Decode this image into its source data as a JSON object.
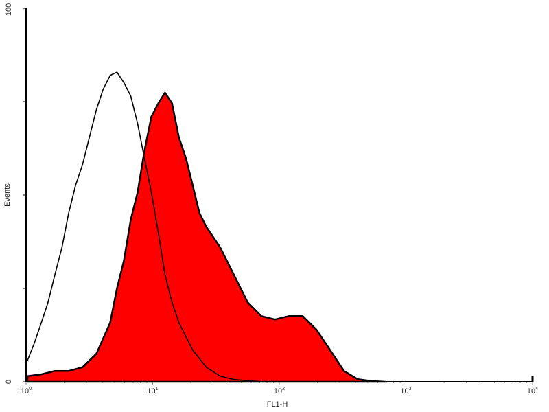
{
  "chart_data": {
    "type": "area",
    "title": "",
    "xlabel": "FL1-H",
    "ylabel": "Events",
    "xscale": "log",
    "xlim": [
      1,
      10000
    ],
    "ylim": [
      0,
      100
    ],
    "x_tick_labels": [
      {
        "base": "10",
        "exp": "0"
      },
      {
        "base": "10",
        "exp": "1"
      },
      {
        "base": "10",
        "exp": "2"
      },
      {
        "base": "10",
        "exp": "3"
      },
      {
        "base": "10",
        "exp": "4"
      }
    ],
    "y_tick_labels": [
      "0",
      "100"
    ],
    "y_ticks": [
      0,
      25,
      50,
      75,
      100
    ],
    "grid": false,
    "colors": {
      "filled": "#ff0000",
      "outline": "#000000"
    },
    "series": [
      {
        "style": "open-outline",
        "x": [
          1.025,
          1.16,
          1.32,
          1.49,
          1.69,
          1.92,
          2.17,
          2.46,
          2.79,
          3.16,
          3.59,
          4.06,
          4.61,
          5.22,
          5.92,
          6.71,
          7.6,
          8.6,
          9.77,
          11.1,
          12.5,
          14.2,
          16.1,
          20.7,
          26.5,
          34.1,
          43.7,
          72
        ],
        "y": [
          5.7,
          10.3,
          15.8,
          21.3,
          28.7,
          36,
          45.2,
          52.6,
          58.1,
          65.4,
          72.8,
          78.3,
          82,
          82.9,
          80.1,
          76.5,
          69.1,
          59.9,
          50.7,
          39.7,
          28.7,
          21.3,
          15.8,
          8.5,
          3.9,
          1.5,
          0.6,
          0
        ]
      },
      {
        "style": "filled",
        "x": [
          1.025,
          1.32,
          1.69,
          2.17,
          2.79,
          3.59,
          4.61,
          5.22,
          5.92,
          6.71,
          7.6,
          8.6,
          9.77,
          11.1,
          12.5,
          14.2,
          16.1,
          18.3,
          20.7,
          23.4,
          26.5,
          34.1,
          43.7,
          56.2,
          72,
          92.5,
          119,
          153,
          196,
          252,
          324,
          416,
          534,
          686
        ],
        "y": [
          1.5,
          2,
          2.9,
          2.9,
          3.9,
          7.5,
          15.8,
          25,
          32.4,
          43.4,
          50.7,
          61.8,
          71,
          74.6,
          77.4,
          74.6,
          65.4,
          59.9,
          52.6,
          45.2,
          41.5,
          36,
          28.7,
          21.3,
          17.6,
          16.7,
          17.6,
          17.6,
          14,
          8.5,
          2.9,
          0.7,
          0.2,
          0
        ]
      }
    ]
  }
}
